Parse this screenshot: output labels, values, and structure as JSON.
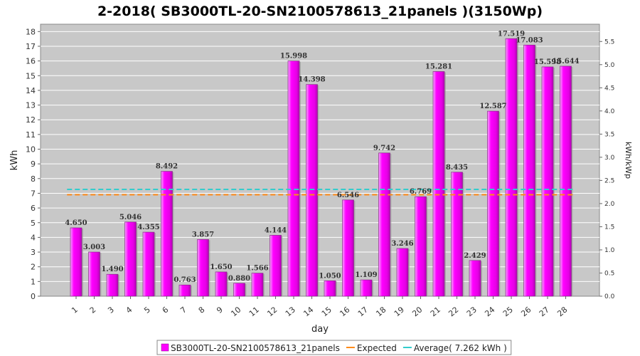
{
  "chart_data": {
    "type": "bar",
    "title": "2-2018( SB3000TL-20-SN2100578613_21panels )(3150Wp)",
    "xlabel": "day",
    "ylabel": "kWh",
    "y2label": "kWh/kWp",
    "ylim": [
      0,
      18.5
    ],
    "y2lim": [
      0,
      5.873
    ],
    "yticks": [
      "0",
      "1",
      "2",
      "3",
      "4",
      "5",
      "6",
      "7",
      "8",
      "9",
      "10",
      "11",
      "12",
      "13",
      "14",
      "15",
      "16",
      "17",
      "18"
    ],
    "y2ticks": [
      "0.0",
      "0.5",
      "1.0",
      "1.5",
      "2.0",
      "2.5",
      "3.0",
      "3.5",
      "4.0",
      "4.5",
      "5.0",
      "5.5"
    ],
    "grid": true,
    "legend_position": "bottom",
    "categories": [
      "1",
      "2",
      "3",
      "4",
      "5",
      "6",
      "7",
      "8",
      "9",
      "10",
      "11",
      "12",
      "13",
      "14",
      "15",
      "16",
      "17",
      "18",
      "19",
      "20",
      "21",
      "22",
      "23",
      "24",
      "25",
      "26",
      "27",
      "28"
    ],
    "series": [
      {
        "name": "SB3000TL-20-SN2100578613_21panels",
        "color": "#ff00ff",
        "values": [
          4.65,
          3.003,
          1.49,
          5.046,
          4.355,
          8.492,
          0.763,
          3.857,
          1.65,
          0.88,
          1.566,
          4.144,
          15.998,
          14.398,
          1.05,
          6.546,
          1.109,
          9.742,
          3.246,
          6.769,
          15.281,
          8.435,
          2.429,
          12.587,
          17.519,
          17.083,
          15.598,
          15.644
        ],
        "labels": [
          "4.650",
          "3.003",
          "1.490",
          "5.046",
          "4.355",
          "8.492",
          "0.763",
          "3.857",
          "1.650",
          "0.880",
          "1.566",
          "4.144",
          "15.998",
          "14.398",
          "1.050",
          "6.546",
          "1.109",
          "9.742",
          "3.246",
          "6.769",
          "15.281",
          "8.435",
          "2.429",
          "12.587",
          "17.519",
          "17.083",
          "15.598",
          "15.644"
        ]
      }
    ],
    "lines": [
      {
        "name": "Expected",
        "value": 6.9,
        "color": "#ff8c1a"
      },
      {
        "name": "Average( 7.262 kWh )",
        "value": 7.262,
        "color": "#33cccc"
      }
    ]
  }
}
